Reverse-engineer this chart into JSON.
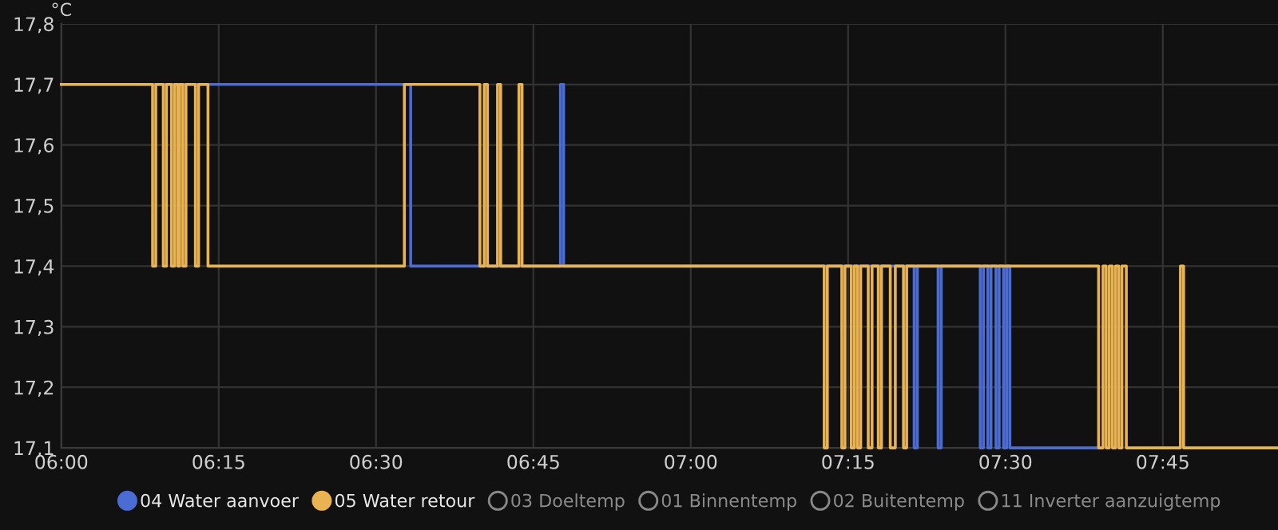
{
  "chart_data": {
    "type": "step",
    "ylabel": "°C",
    "xlim": [
      6,
      7.933
    ],
    "ylim": [
      17.1,
      17.8
    ],
    "xticks": [
      {
        "value": 6,
        "label": "06:00"
      },
      {
        "value": 6.25,
        "label": "06:15"
      },
      {
        "value": 6.5,
        "label": "06:30"
      },
      {
        "value": 6.75,
        "label": "06:45"
      },
      {
        "value": 7,
        "label": "07:00"
      },
      {
        "value": 7.25,
        "label": "07:15"
      },
      {
        "value": 7.5,
        "label": "07:30"
      },
      {
        "value": 7.75,
        "label": "07:45"
      }
    ],
    "yticks": [
      {
        "value": 17.1,
        "label": "17,1"
      },
      {
        "value": 17.2,
        "label": "17,2"
      },
      {
        "value": 17.3,
        "label": "17,3"
      },
      {
        "value": 17.4,
        "label": "17,4"
      },
      {
        "value": 17.5,
        "label": "17,5"
      },
      {
        "value": 17.6,
        "label": "17,6"
      },
      {
        "value": 17.7,
        "label": "17,7"
      },
      {
        "value": 17.8,
        "label": "17,8"
      }
    ],
    "grid": true,
    "legend": "bottom",
    "marker": "none",
    "line_style": "solid",
    "series": [
      {
        "name": "04 Water aanvoer",
        "color": "#4a6cd4",
        "x": [
          6,
          6.555,
          6.793,
          6.798,
          7.355,
          7.36,
          7.393,
          7.398,
          7.46,
          7.465,
          7.472,
          7.477,
          7.485,
          7.49,
          7.497,
          7.502,
          7.507,
          7.645
        ],
        "values": [
          17.7,
          17.4,
          17.7,
          17.4,
          17.1,
          17.4,
          17.1,
          17.4,
          17.1,
          17.4,
          17.1,
          17.4,
          17.1,
          17.4,
          17.1,
          17.4,
          17.1,
          17.1
        ]
      },
      {
        "name": "05 Water retour",
        "color": "#e8b350",
        "x": [
          6,
          6.145,
          6.15,
          6.162,
          6.167,
          6.175,
          6.18,
          6.185,
          6.188,
          6.193,
          6.198,
          6.213,
          6.218,
          6.233,
          6.545,
          6.665,
          6.672,
          6.677,
          6.693,
          6.698,
          6.727,
          6.732,
          7.212,
          7.217,
          7.24,
          7.245,
          7.255,
          7.26,
          7.265,
          7.27,
          7.282,
          7.288,
          7.298,
          7.303,
          7.317,
          7.325,
          7.338,
          7.343,
          7.648,
          7.655,
          7.66,
          7.665,
          7.67,
          7.675,
          7.68,
          7.685,
          7.692,
          7.778,
          7.783,
          7.933
        ],
        "values": [
          17.7,
          17.4,
          17.7,
          17.4,
          17.7,
          17.4,
          17.7,
          17.4,
          17.7,
          17.4,
          17.7,
          17.4,
          17.7,
          17.4,
          17.7,
          17.4,
          17.7,
          17.4,
          17.7,
          17.4,
          17.7,
          17.4,
          17.1,
          17.4,
          17.1,
          17.4,
          17.1,
          17.4,
          17.1,
          17.4,
          17.1,
          17.4,
          17.1,
          17.4,
          17.1,
          17.4,
          17.1,
          17.4,
          17.1,
          17.4,
          17.1,
          17.4,
          17.1,
          17.4,
          17.1,
          17.4,
          17.1,
          17.4,
          17.1,
          17.1
        ]
      },
      {
        "name": "03 Doeltemp"
      },
      {
        "name": "01 Binnentemp"
      },
      {
        "name": "02 Buitentemp"
      },
      {
        "name": "11 Inverter aanzuigtemp"
      }
    ]
  }
}
